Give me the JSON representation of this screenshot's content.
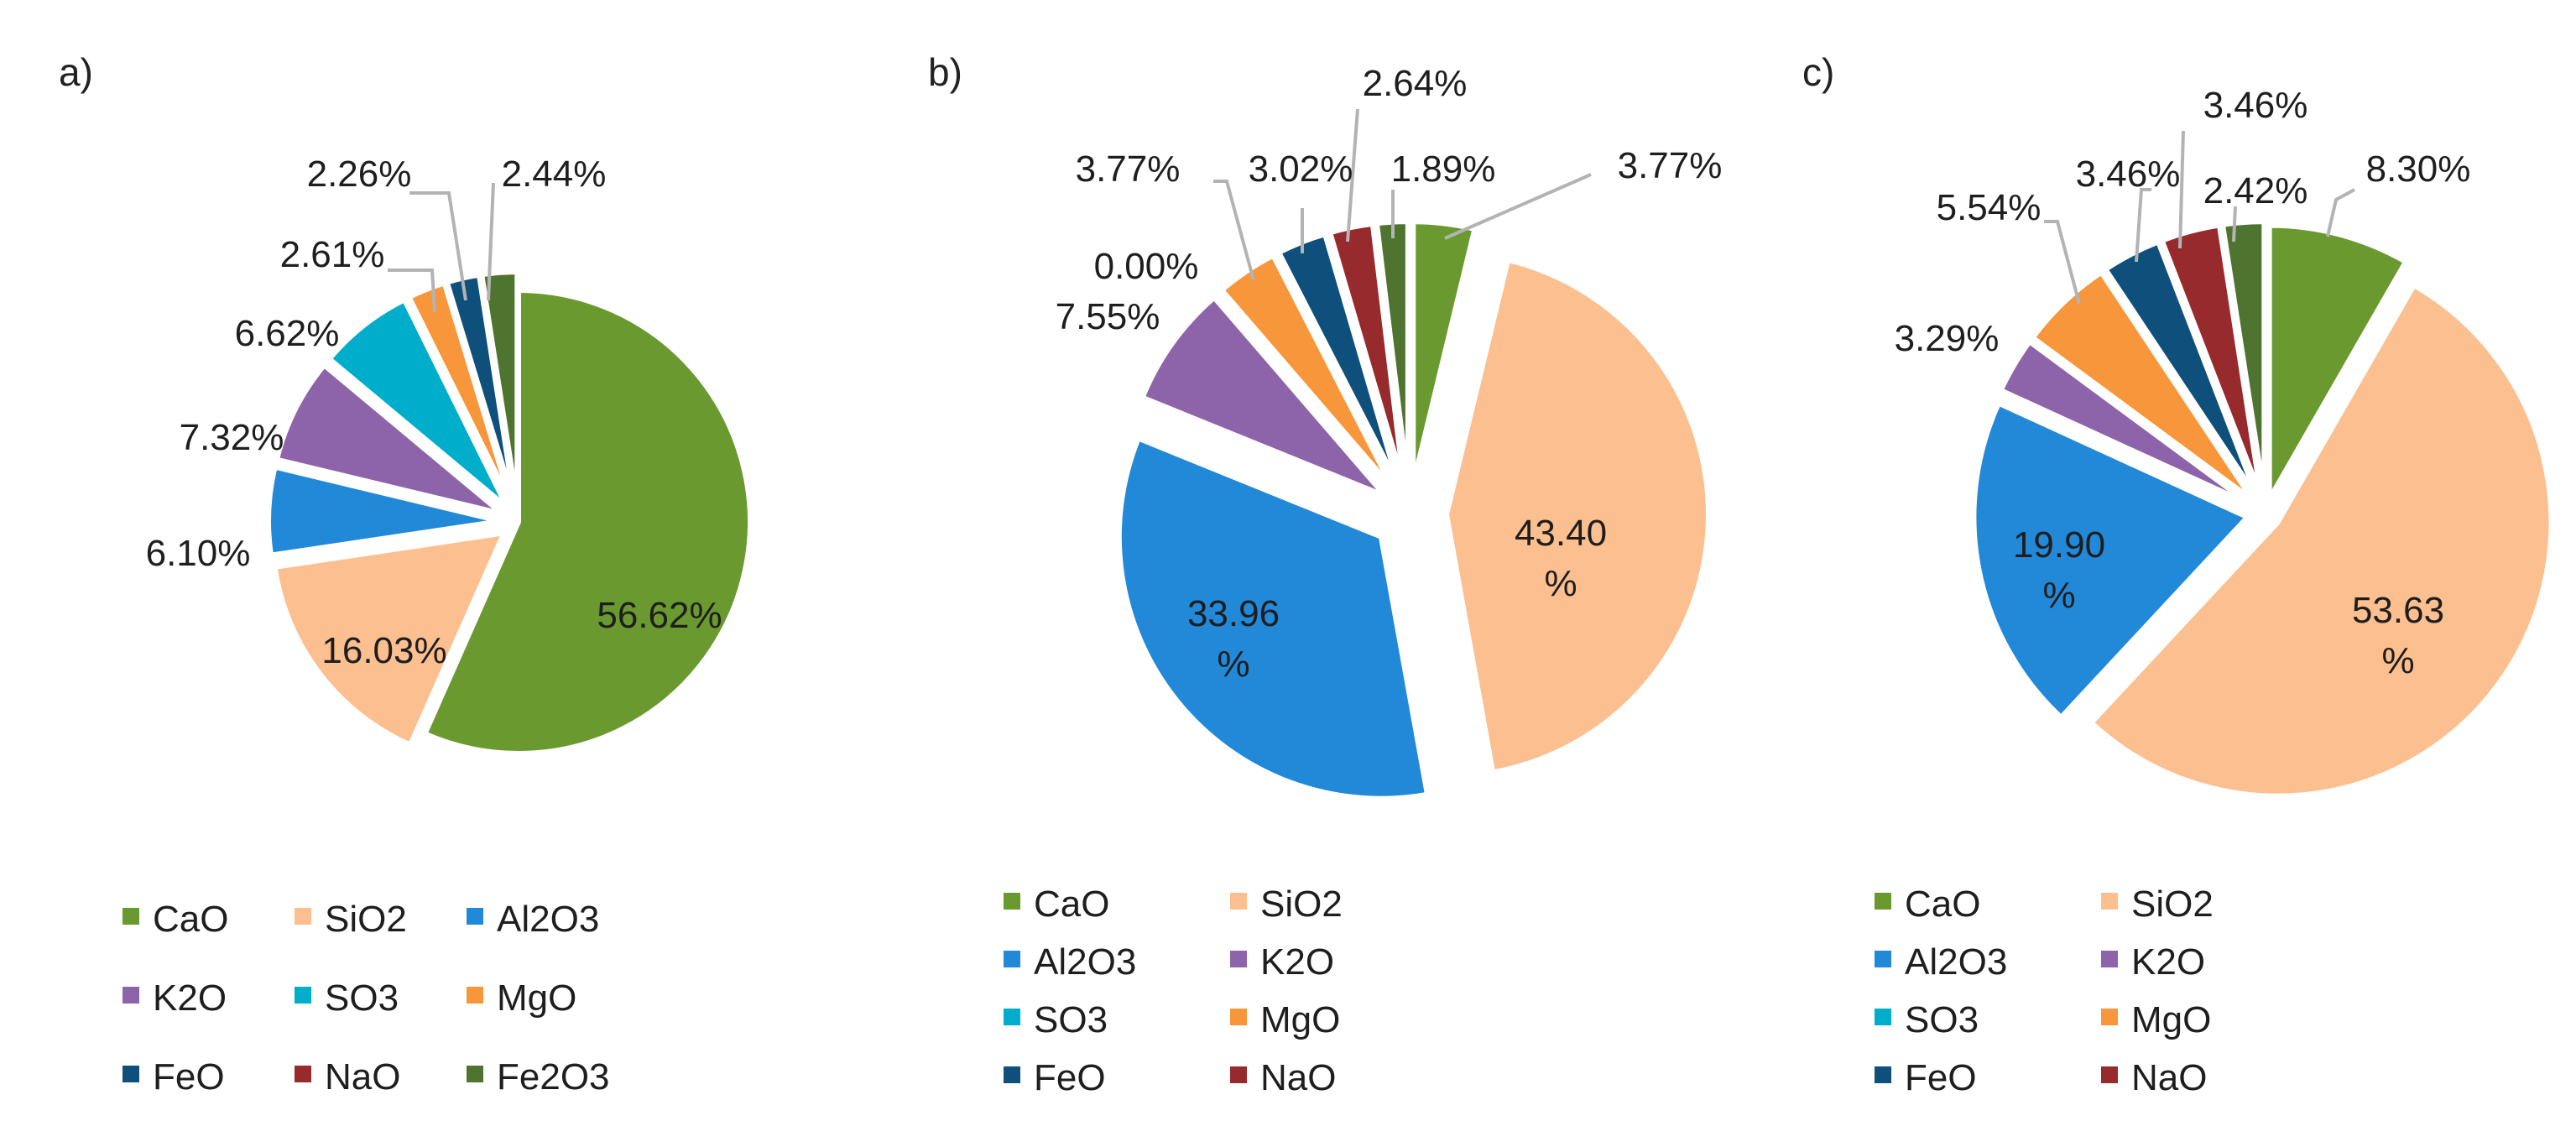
{
  "colors": {
    "CaO": "#6a9a2f",
    "SiO2": "#fcbf8f",
    "Al2O3": "#2288d8",
    "K2O": "#8d64aa",
    "SO3": "#00aecb",
    "MgO": "#f7963a",
    "FeO": "#0e4f7c",
    "NaO": "#972a2d",
    "Fe2O3": "#4f7430"
  },
  "chart_data": [
    {
      "type": "pie",
      "panel": "a)",
      "slices": [
        {
          "name": "CaO",
          "value": 56.62,
          "label": "56.62%"
        },
        {
          "name": "SiO2",
          "value": 16.03,
          "label": "16.03%"
        },
        {
          "name": "Al2O3",
          "value": 6.1,
          "label": "6.10%"
        },
        {
          "name": "K2O",
          "value": 7.32,
          "label": "7.32%"
        },
        {
          "name": "SO3",
          "value": 6.62,
          "label": "6.62%"
        },
        {
          "name": "MgO",
          "value": 2.61,
          "label": "2.61%"
        },
        {
          "name": "FeO",
          "value": 2.26,
          "label": "2.26%"
        },
        {
          "name": "Fe2O3",
          "value": 2.44,
          "label": "2.44%"
        }
      ],
      "legend": [
        "CaO",
        "SiO2",
        "Al2O3",
        "K2O",
        "SO3",
        "MgO",
        "FeO",
        "NaO",
        "Fe2O3"
      ]
    },
    {
      "type": "pie",
      "panel": "b)",
      "slices": [
        {
          "name": "CaO",
          "value": 3.77,
          "label": "3.77%"
        },
        {
          "name": "SiO2",
          "value": 43.4,
          "label": "43.40\n%"
        },
        {
          "name": "Al2O3",
          "value": 33.96,
          "label": "33.96\n%"
        },
        {
          "name": "K2O",
          "value": 7.55,
          "label": "7.55%"
        },
        {
          "name": "SO3",
          "value": 0.0,
          "label": "0.00%"
        },
        {
          "name": "MgO",
          "value": 3.77,
          "label": "3.77%"
        },
        {
          "name": "FeO",
          "value": 3.02,
          "label": "3.02%"
        },
        {
          "name": "NaO",
          "value": 2.64,
          "label": "2.64%"
        },
        {
          "name": "Fe2O3",
          "value": 1.89,
          "label": "1.89%"
        }
      ],
      "legend": [
        "CaO",
        "SiO2",
        "Al2O3",
        "K2O",
        "SO3",
        "MgO",
        "FeO",
        "NaO"
      ]
    },
    {
      "type": "pie",
      "panel": "c)",
      "slices": [
        {
          "name": "CaO",
          "value": 8.3,
          "label": "8.30%"
        },
        {
          "name": "SiO2",
          "value": 53.63,
          "label": "53.63\n%"
        },
        {
          "name": "Al2O3",
          "value": 19.9,
          "label": "19.90\n%"
        },
        {
          "name": "K2O",
          "value": 3.29,
          "label": "3.29%"
        },
        {
          "name": "MgO",
          "value": 5.54,
          "label": "5.54%"
        },
        {
          "name": "FeO",
          "value": 3.46,
          "label": "3.46%"
        },
        {
          "name": "NaO",
          "value": 3.46,
          "label": "3.46%"
        },
        {
          "name": "Fe2O3",
          "value": 2.42,
          "label": "2.42%"
        }
      ],
      "legend": [
        "CaO",
        "SiO2",
        "Al2O3",
        "K2O",
        "SO3",
        "MgO",
        "FeO",
        "NaO"
      ]
    }
  ]
}
